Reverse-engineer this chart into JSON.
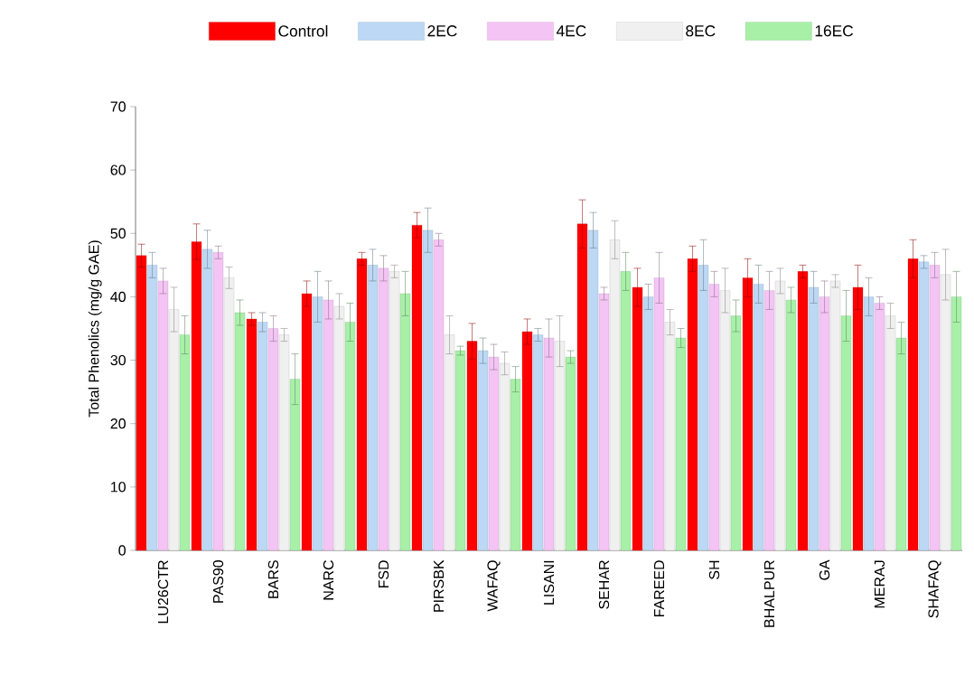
{
  "chart_data": {
    "type": "bar",
    "ylabel": "Total Phenolics (mg/g GAE)",
    "categories": [
      "LU26CTR",
      "PAS90",
      "BARS",
      "NARC",
      "FSD",
      "PIRSBK",
      "WAFAQ",
      "LISANI",
      "SEHAR",
      "FAREED",
      "SH",
      "BHALPUR",
      "GA",
      "MERAJ",
      "SHAFAQ"
    ],
    "series": [
      {
        "name": "Control",
        "color": "#ff0000",
        "values": [
          46.5,
          48.7,
          36.5,
          40.5,
          46,
          51.3,
          33,
          34.5,
          51.5,
          41.5,
          46,
          43,
          44,
          41.5,
          46
        ],
        "errors": [
          1.8,
          2.8,
          1,
          2,
          1,
          2,
          2.8,
          2,
          3.8,
          3,
          2,
          3,
          1,
          3.5,
          3
        ]
      },
      {
        "name": "2EC",
        "color": "#bcd8f4",
        "values": [
          45,
          47.5,
          36,
          40,
          45,
          50.5,
          31.5,
          34,
          50.5,
          40,
          45,
          42,
          41.5,
          40,
          45.5
        ],
        "errors": [
          2,
          3,
          1.5,
          4,
          2.5,
          3.5,
          2,
          1,
          2.8,
          2,
          4,
          3,
          2.5,
          3,
          1
        ]
      },
      {
        "name": "4EC",
        "color": "#f4c4f4",
        "values": [
          42.5,
          47,
          35,
          39.5,
          44.5,
          49,
          30.5,
          33.5,
          40.5,
          43,
          42,
          41,
          40,
          39,
          45
        ],
        "errors": [
          2,
          1,
          2,
          3,
          2,
          1,
          2,
          3,
          1,
          4,
          2,
          3,
          2.5,
          1,
          2
        ]
      },
      {
        "name": "8EC",
        "color": "#f0f0f0",
        "values": [
          38,
          43,
          34,
          38.5,
          44,
          34,
          29.5,
          33,
          49,
          36,
          41,
          42.5,
          42.5,
          37,
          43.5
        ],
        "errors": [
          3.5,
          1.7,
          1,
          2,
          1,
          3,
          1.8,
          4,
          3,
          2,
          3.5,
          2,
          1,
          2,
          4
        ]
      },
      {
        "name": "16EC",
        "color": "#a8f0a8",
        "values": [
          34,
          37.5,
          27,
          36,
          40.5,
          31.5,
          27,
          30.5,
          44,
          33.5,
          37,
          39.5,
          37,
          33.5,
          40
        ],
        "errors": [
          3,
          2,
          4,
          3,
          3.5,
          0.7,
          2,
          1,
          3,
          1.5,
          2.5,
          2,
          4,
          2.5,
          4
        ]
      }
    ],
    "ylim": [
      0,
      70
    ],
    "yticks": [
      0,
      10,
      20,
      30,
      40,
      50,
      60,
      70
    ],
    "legend": "top",
    "grid": false
  }
}
